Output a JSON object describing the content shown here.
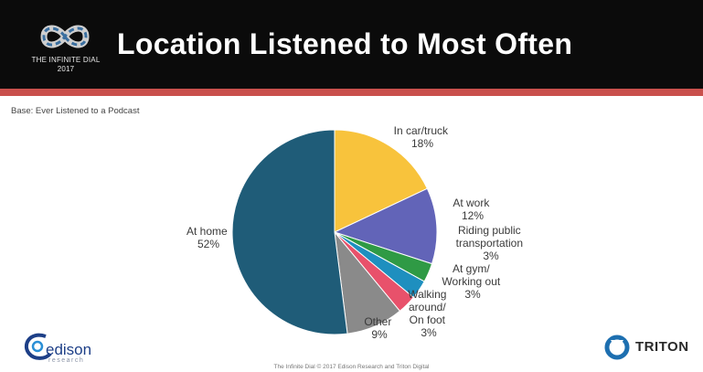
{
  "header": {
    "logo_line1": "THE INFINITE DIAL",
    "logo_line2": "2017",
    "title": "Location Listened to Most Often"
  },
  "base_note": "Base: Ever Listened to a Podcast",
  "footer": "The Infinite Dial  © 2017 Edison Research and Triton Digital",
  "brands": {
    "edison": "edison",
    "edison_sub": "research",
    "triton": "TRITON"
  },
  "colors": {
    "header_bg": "#0b0b0b",
    "header_rule": "#c9504c"
  },
  "chart_data": {
    "type": "pie",
    "title": "Location Listened to Most Often",
    "slices": [
      {
        "label": "In car/truck",
        "value": 18,
        "value_label": "18%",
        "color": "#f8c33c"
      },
      {
        "label": "At work",
        "value": 12,
        "value_label": "12%",
        "color": "#6264b8"
      },
      {
        "label": "Riding public transportation",
        "value": 3,
        "value_label": "3%",
        "color": "#2f9a45"
      },
      {
        "label": "At gym/ Working out",
        "value": 3,
        "value_label": "3%",
        "color": "#1e8fbf"
      },
      {
        "label": "Walking around/ On foot",
        "value": 3,
        "value_label": "3%",
        "color": "#e8516b"
      },
      {
        "label": "Other",
        "value": 9,
        "value_label": "9%",
        "color": "#8a8a8a"
      },
      {
        "label": "At home",
        "value": 52,
        "value_label": "52%",
        "color": "#1f5c78"
      }
    ]
  }
}
